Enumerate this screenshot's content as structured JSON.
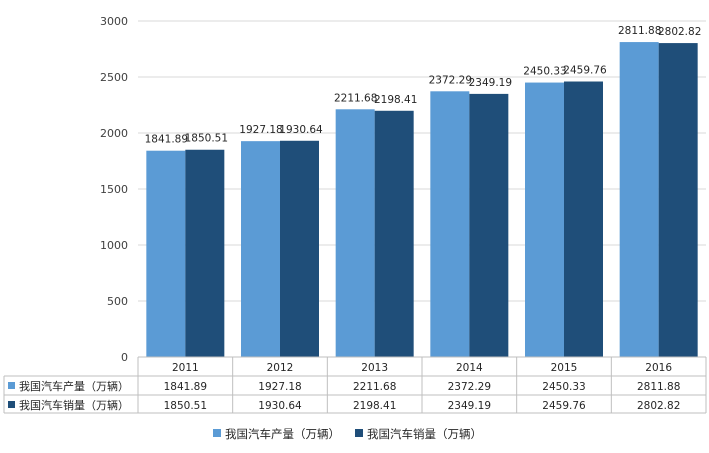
{
  "chart_data": {
    "type": "bar",
    "categories": [
      "2011",
      "2012",
      "2013",
      "2014",
      "2015",
      "2016"
    ],
    "series": [
      {
        "name": "我国汽车产量（万辆）",
        "values": [
          1841.89,
          1927.18,
          2211.68,
          2372.29,
          2450.33,
          2811.88
        ],
        "labels": [
          "1841.89",
          "1927.18",
          "2211.68",
          "2372.29",
          "2450.33",
          "2811.88"
        ],
        "color": "#5b9bd5"
      },
      {
        "name": "我国汽车销量（万辆）",
        "values": [
          1850.51,
          1930.64,
          2198.41,
          2349.19,
          2459.76,
          2802.82
        ],
        "labels": [
          "1850.51",
          "1930.64",
          "2198.41",
          "2349.19",
          "2459.76",
          "2802.82"
        ],
        "color": "#1f4e79"
      }
    ],
    "yticks": [
      0,
      500,
      1000,
      1500,
      2000,
      2500,
      3000
    ],
    "ylim": [
      0,
      3000
    ],
    "grid": true,
    "legend_position": "bottom",
    "data_table": true
  }
}
